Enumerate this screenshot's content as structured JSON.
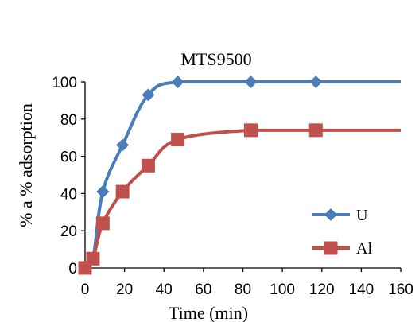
{
  "chart_data": {
    "type": "line",
    "title": "MTS9500",
    "xlabel": "Time (min)",
    "ylabel": "% a  % adsorption",
    "xlim": [
      0,
      160
    ],
    "ylim": [
      0,
      100
    ],
    "xticks": [
      0,
      20,
      40,
      60,
      80,
      100,
      120,
      140,
      160
    ],
    "yticks": [
      0,
      20,
      40,
      60,
      80,
      100
    ],
    "grid": false,
    "legend_position": "bottom-right",
    "series": [
      {
        "name": "U",
        "color": "#4a7ebb",
        "marker": "diamond",
        "x": [
          0,
          4,
          9,
          19,
          32,
          47,
          84,
          117
        ],
        "y": [
          0,
          5,
          41,
          66,
          93,
          100,
          100,
          100
        ],
        "line_end_x": 160,
        "line_end_y": 100
      },
      {
        "name": "Al",
        "color": "#c0504d",
        "marker": "square",
        "x": [
          0,
          4,
          9,
          19,
          32,
          47,
          84,
          117
        ],
        "y": [
          0,
          5,
          24,
          41,
          55,
          69,
          74,
          74
        ],
        "line_end_x": 160,
        "line_end_y": 74
      }
    ]
  }
}
